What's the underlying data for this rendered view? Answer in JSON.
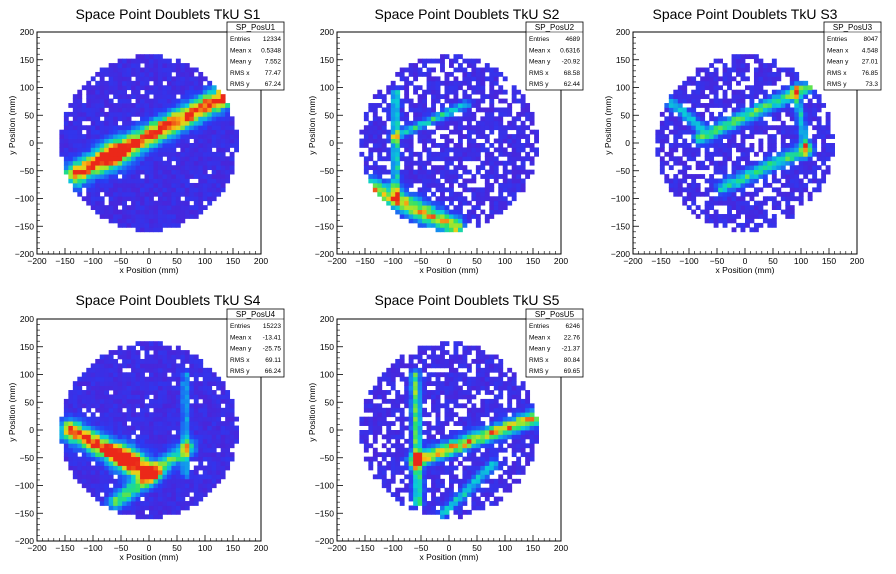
{
  "chart_data": [
    {
      "type": "heatmap",
      "title": "Space Point Doublets TkU S1",
      "xlabel": "x Position (mm)",
      "ylabel": "y Position (mm)",
      "xlim": [
        -200,
        200
      ],
      "ylim": [
        -200,
        200
      ],
      "xticks": [
        -200,
        -150,
        -100,
        -50,
        0,
        50,
        100,
        150,
        200
      ],
      "yticks": [
        -200,
        -150,
        -100,
        -50,
        0,
        50,
        100,
        150,
        200
      ],
      "stats": {
        "name": "SP_PosU1",
        "rows": [
          [
            "Entries",
            "12334"
          ],
          [
            "Mean x",
            "0.5348"
          ],
          [
            "Mean y",
            "7.552"
          ],
          [
            "RMS x",
            "77.47"
          ],
          [
            "RMS y",
            "67.24"
          ]
        ]
      },
      "features": [
        {
          "kind": "band",
          "x1": -130,
          "y1": -55,
          "x2": 145,
          "y2": 90,
          "width": 14,
          "peak": 1.0,
          "hot": [
            -60,
            -20
          ]
        }
      ]
    },
    {
      "type": "heatmap",
      "title": "Space Point Doublets TkU S2",
      "xlabel": "x Position (mm)",
      "ylabel": "y Position (mm)",
      "xlim": [
        -200,
        200
      ],
      "ylim": [
        -200,
        200
      ],
      "xticks": [
        -200,
        -150,
        -100,
        -50,
        0,
        50,
        100,
        150,
        200
      ],
      "yticks": [
        -200,
        -150,
        -100,
        -50,
        0,
        50,
        100,
        150,
        200
      ],
      "stats": {
        "name": "SP_PosU2",
        "rows": [
          [
            "Entries",
            "4689"
          ],
          [
            "Mean x",
            "0.6316"
          ],
          [
            "Mean y",
            "-20.92"
          ],
          [
            "RMS x",
            "68.58"
          ],
          [
            "RMS y",
            "62.44"
          ]
        ]
      },
      "features": [
        {
          "kind": "band",
          "x1": -140,
          "y1": -80,
          "x2": 10,
          "y2": -150,
          "width": 12,
          "peak": 0.8
        },
        {
          "kind": "band",
          "x1": -95,
          "y1": 90,
          "x2": -95,
          "y2": -100,
          "width": 5,
          "peak": 0.55
        },
        {
          "kind": "band",
          "x1": -100,
          "y1": 10,
          "x2": 30,
          "y2": 70,
          "width": 5,
          "peak": 0.5
        }
      ]
    },
    {
      "type": "heatmap",
      "title": "Space Point Doublets TkU S3",
      "xlabel": "x Position (mm)",
      "ylabel": "y Position (mm)",
      "xlim": [
        -200,
        200
      ],
      "ylim": [
        -200,
        200
      ],
      "xticks": [
        -200,
        -150,
        -100,
        -50,
        0,
        50,
        100,
        150,
        200
      ],
      "yticks": [
        -200,
        -150,
        -100,
        -50,
        0,
        50,
        100,
        150,
        200
      ],
      "stats": {
        "name": "SP_PosU3",
        "rows": [
          [
            "Entries",
            "8047"
          ],
          [
            "Mean x",
            "4.548"
          ],
          [
            "Mean y",
            "27.01"
          ],
          [
            "RMS x",
            "76.85"
          ],
          [
            "RMS y",
            "73.3"
          ]
        ]
      },
      "features": [
        {
          "kind": "band",
          "x1": -80,
          "y1": 10,
          "x2": 130,
          "y2": 110,
          "width": 8,
          "peak": 0.6
        },
        {
          "kind": "band",
          "x1": -40,
          "y1": -80,
          "x2": 110,
          "y2": -10,
          "width": 8,
          "peak": 0.55
        },
        {
          "kind": "band",
          "x1": 90,
          "y1": 100,
          "x2": 110,
          "y2": -20,
          "width": 5,
          "peak": 0.45
        },
        {
          "kind": "band",
          "x1": -140,
          "y1": 80,
          "x2": -80,
          "y2": 30,
          "width": 6,
          "peak": 0.45
        }
      ]
    },
    {
      "type": "heatmap",
      "title": "Space Point Doublets TkU S4",
      "xlabel": "x Position (mm)",
      "ylabel": "y Position (mm)",
      "xlim": [
        -200,
        200
      ],
      "ylim": [
        -200,
        200
      ],
      "xticks": [
        -200,
        -150,
        -100,
        -50,
        0,
        50,
        100,
        150,
        200
      ],
      "yticks": [
        -200,
        -150,
        -100,
        -50,
        0,
        50,
        100,
        150,
        200
      ],
      "stats": {
        "name": "SP_PosU4",
        "rows": [
          [
            "Entries",
            "15223"
          ],
          [
            "Mean x",
            "-13.41"
          ],
          [
            "Mean y",
            "-25.75"
          ],
          [
            "RMS x",
            "69.11"
          ],
          [
            "RMS y",
            "66.24"
          ]
        ]
      },
      "features": [
        {
          "kind": "band",
          "x1": -140,
          "y1": 0,
          "x2": 0,
          "y2": -75,
          "width": 13,
          "peak": 1.0,
          "hot": [
            -40,
            -50
          ]
        },
        {
          "kind": "band",
          "x1": -60,
          "y1": -130,
          "x2": 70,
          "y2": -30,
          "width": 10,
          "peak": 0.6
        },
        {
          "kind": "band",
          "x1": 65,
          "y1": 100,
          "x2": 65,
          "y2": -80,
          "width": 5,
          "peak": 0.35
        }
      ]
    },
    {
      "type": "heatmap",
      "title": "Space Point Doublets TkU S5",
      "xlabel": "x Position (mm)",
      "ylabel": "y Position (mm)",
      "xlim": [
        -200,
        200
      ],
      "ylim": [
        -200,
        200
      ],
      "xticks": [
        -200,
        -150,
        -100,
        -50,
        0,
        50,
        100,
        150,
        200
      ],
      "yticks": [
        -200,
        -150,
        -100,
        -50,
        0,
        50,
        100,
        150,
        200
      ],
      "stats": {
        "name": "SP_PosU5",
        "rows": [
          [
            "Entries",
            "6246"
          ],
          [
            "Mean x",
            "22.76"
          ],
          [
            "Mean y",
            "-21.37"
          ],
          [
            "RMS x",
            "80.84"
          ],
          [
            "RMS y",
            "69.65"
          ]
        ]
      },
      "features": [
        {
          "kind": "band",
          "x1": -60,
          "y1": -55,
          "x2": 160,
          "y2": 25,
          "width": 9,
          "peak": 0.85
        },
        {
          "kind": "band",
          "x1": -60,
          "y1": 100,
          "x2": -55,
          "y2": -130,
          "width": 6,
          "peak": 0.6
        },
        {
          "kind": "band",
          "x1": -10,
          "y1": -150,
          "x2": 80,
          "y2": -60,
          "width": 6,
          "peak": 0.45
        }
      ]
    }
  ]
}
